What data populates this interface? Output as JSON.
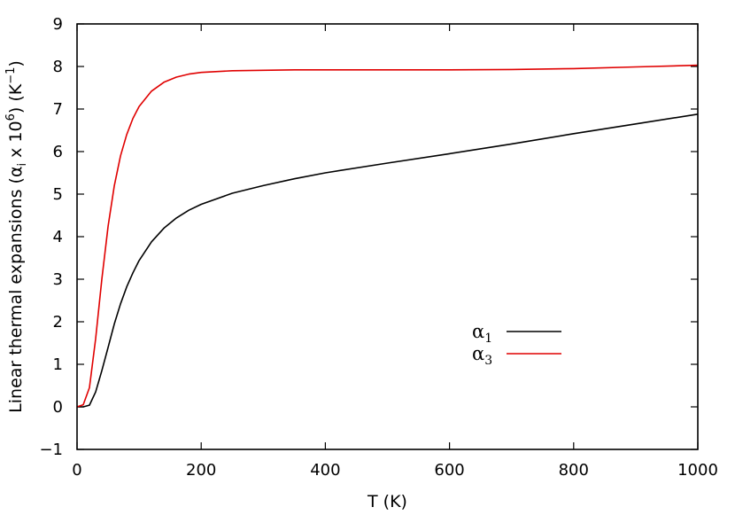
{
  "chart_data": {
    "type": "line",
    "xlabel": "T (K)",
    "ylabel": {
      "main": "Linear thermal expansions (",
      "alpha": "α",
      "alpha_sub": "i",
      "times": " x 10",
      "exp": "6",
      "mid": ") (K",
      "unit_exp": "−1",
      "end": ")"
    },
    "xlim": [
      0,
      1000
    ],
    "ylim": [
      -1,
      9
    ],
    "xticks": [
      "0",
      "200",
      "400",
      "600",
      "800",
      "1000"
    ],
    "yticks": [
      "−1",
      "0",
      "1",
      "2",
      "3",
      "4",
      "5",
      "6",
      "7",
      "8",
      "9"
    ],
    "grid": false,
    "legend_position": "center-right",
    "series": [
      {
        "name": "α1",
        "label_symbol": "α",
        "label_sub": "1",
        "color": "#000000",
        "x": [
          0,
          10,
          20,
          30,
          40,
          50,
          60,
          70,
          80,
          90,
          100,
          120,
          140,
          160,
          180,
          200,
          250,
          300,
          350,
          400,
          500,
          600,
          700,
          800,
          900,
          1000
        ],
        "y": [
          0,
          0,
          0.04,
          0.35,
          0.85,
          1.4,
          1.95,
          2.42,
          2.82,
          3.15,
          3.44,
          3.88,
          4.2,
          4.44,
          4.62,
          4.76,
          5.02,
          5.2,
          5.36,
          5.5,
          5.73,
          5.95,
          6.18,
          6.42,
          6.65,
          6.88
        ]
      },
      {
        "name": "α3",
        "label_symbol": "α",
        "label_sub": "3",
        "color": "#e00000",
        "x": [
          0,
          10,
          20,
          30,
          40,
          50,
          60,
          70,
          80,
          90,
          100,
          120,
          140,
          160,
          180,
          200,
          250,
          300,
          350,
          400,
          500,
          600,
          700,
          800,
          900,
          1000
        ],
        "y": [
          0,
          0.05,
          0.45,
          1.6,
          3.0,
          4.25,
          5.2,
          5.9,
          6.4,
          6.78,
          7.06,
          7.42,
          7.63,
          7.75,
          7.82,
          7.86,
          7.9,
          7.91,
          7.92,
          7.92,
          7.92,
          7.92,
          7.93,
          7.95,
          7.99,
          8.03
        ]
      }
    ]
  }
}
